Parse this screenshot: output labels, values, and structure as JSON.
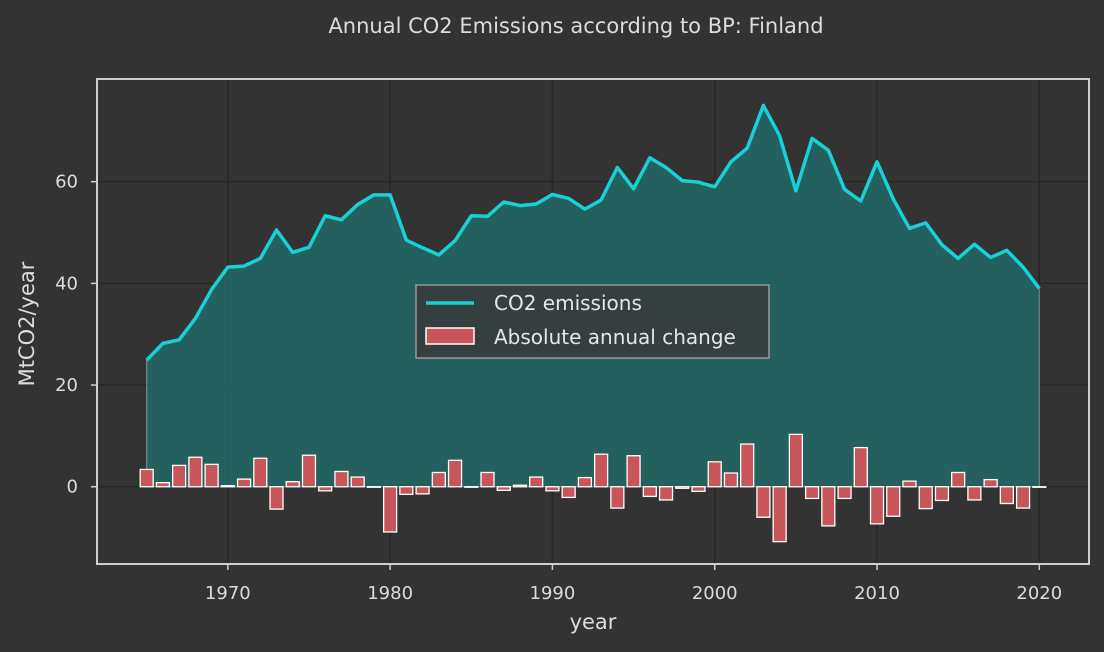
{
  "chart_data": {
    "type": "line",
    "title": "Annual CO2 Emissions according to BP: Finland",
    "xlabel": "year",
    "ylabel": "MtCO2/year",
    "xlim": [
      1962,
      2023
    ],
    "ylim": [
      -15,
      80
    ],
    "xticks": [
      1970,
      1980,
      1990,
      2000,
      2010,
      2020
    ],
    "yticks": [
      0,
      20,
      40,
      60
    ],
    "grid": true,
    "legend_position": "center",
    "colors": {
      "background": "#333333",
      "line": "#17d1d6",
      "fill": "#226563",
      "bars": "#c8555a",
      "bar_edge": "#ffffff",
      "grid": "#262626",
      "text": "#dcdcdc",
      "frame": "#cfcfcf"
    },
    "series": [
      {
        "name": "CO2 emissions",
        "type": "line",
        "x": [
          1965,
          1966,
          1967,
          1968,
          1969,
          1970,
          1971,
          1972,
          1973,
          1974,
          1975,
          1976,
          1977,
          1978,
          1979,
          1980,
          1981,
          1982,
          1983,
          1984,
          1985,
          1986,
          1987,
          1988,
          1989,
          1990,
          1991,
          1992,
          1993,
          1994,
          1995,
          1996,
          1997,
          1998,
          1999,
          2000,
          2001,
          2002,
          2003,
          2004,
          2005,
          2006,
          2007,
          2008,
          2009,
          2010,
          2011,
          2012,
          2013,
          2014,
          2015,
          2016,
          2017,
          2018,
          2019,
          2020
        ],
        "values": [
          24.9,
          28.2,
          28.9,
          33.1,
          38.8,
          43.2,
          43.4,
          44.9,
          50.5,
          46.1,
          47.1,
          53.3,
          52.5,
          55.5,
          57.4,
          57.4,
          48.5,
          47.0,
          45.6,
          48.4,
          53.3,
          53.2,
          56.0,
          55.3,
          55.6,
          57.5,
          56.7,
          54.6,
          56.4,
          62.8,
          58.6,
          64.7,
          62.8,
          60.2,
          59.9,
          59.0,
          63.9,
          66.6,
          75.0,
          69.0,
          58.2,
          68.5,
          66.2,
          58.5,
          56.2,
          63.9,
          56.6,
          50.8,
          51.9,
          47.6,
          44.9,
          47.7,
          45.1,
          46.5,
          43.2,
          39.0
        ]
      },
      {
        "name": "Absolute annual change",
        "type": "bar",
        "x": [
          1965,
          1966,
          1967,
          1968,
          1969,
          1970,
          1971,
          1972,
          1973,
          1974,
          1975,
          1976,
          1977,
          1978,
          1979,
          1980,
          1981,
          1982,
          1983,
          1984,
          1985,
          1986,
          1987,
          1988,
          1989,
          1990,
          1991,
          1992,
          1993,
          1994,
          1995,
          1996,
          1997,
          1998,
          1999,
          2000,
          2001,
          2002,
          2003,
          2004,
          2005,
          2006,
          2007,
          2008,
          2009,
          2010,
          2011,
          2012,
          2013,
          2014,
          2015,
          2016,
          2017,
          2018,
          2019,
          2020
        ],
        "values": [
          3.4,
          0.8,
          4.2,
          5.8,
          4.4,
          0.2,
          1.5,
          5.6,
          -4.4,
          1.0,
          6.2,
          -0.8,
          3.0,
          1.9,
          0.0,
          -8.9,
          -1.5,
          -1.4,
          2.8,
          5.2,
          -0.1,
          2.8,
          -0.7,
          0.3,
          1.9,
          -0.8,
          -2.1,
          1.8,
          6.4,
          -4.2,
          6.1,
          -1.9,
          -2.6,
          -0.3,
          -0.9,
          4.9,
          2.7,
          8.4,
          -6.0,
          -10.8,
          10.3,
          -2.3,
          -7.7,
          -2.3,
          7.7,
          -7.3,
          -5.8,
          1.1,
          -4.3,
          -2.7,
          2.8,
          -2.6,
          1.4,
          -3.3,
          -4.2,
          0.0
        ]
      }
    ]
  }
}
